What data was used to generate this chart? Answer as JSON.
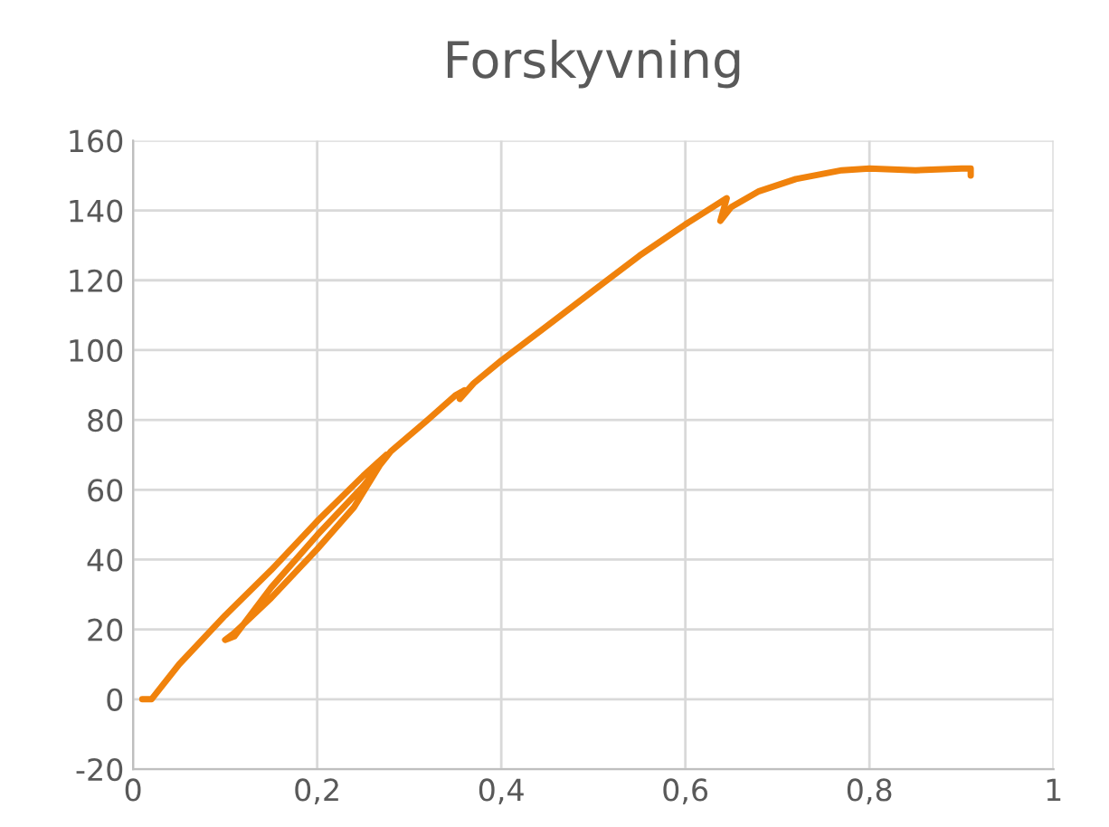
{
  "chart_data": {
    "type": "line",
    "title": "Forskyvning",
    "series": [
      {
        "color": "#f0820c",
        "x": [
          0.01,
          0.02,
          0.05,
          0.1,
          0.15,
          0.2,
          0.25,
          0.275,
          0.24,
          0.2,
          0.15,
          0.11,
          0.1,
          0.11,
          0.15,
          0.2,
          0.25,
          0.28,
          0.32,
          0.35,
          0.36,
          0.355,
          0.37,
          0.4,
          0.45,
          0.5,
          0.55,
          0.6,
          0.645,
          0.638,
          0.65,
          0.68,
          0.72,
          0.77,
          0.8,
          0.85,
          0.9,
          0.91,
          0.91
        ],
        "values": [
          0,
          0,
          10,
          24,
          37,
          51,
          64,
          70,
          55,
          43,
          29,
          19,
          17,
          18,
          32,
          47,
          61,
          71,
          80,
          87,
          88.5,
          86,
          90.5,
          97,
          107,
          117,
          127,
          136,
          143.5,
          137,
          141,
          145.5,
          149,
          151.5,
          152,
          151.5,
          152,
          152,
          150
        ]
      }
    ],
    "xlim": [
      0,
      1
    ],
    "ylim": [
      -20,
      160
    ],
    "xticks": [
      0,
      {
        "value": 0.2,
        "label": "0,2"
      },
      {
        "value": 0.4,
        "label": "0,4"
      },
      {
        "value": 0.6,
        "label": "0,6"
      },
      {
        "value": 0.8,
        "label": "0,8"
      },
      1
    ],
    "yticks": [
      -20,
      0,
      20,
      40,
      60,
      80,
      100,
      120,
      140,
      160
    ],
    "grid": true,
    "line_style": "solid",
    "marker": "none"
  }
}
